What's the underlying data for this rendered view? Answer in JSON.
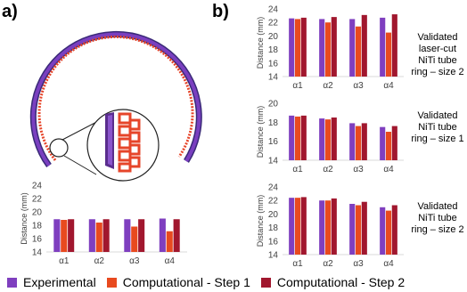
{
  "panels": {
    "a": "a)",
    "b": "b)"
  },
  "colors": {
    "experimental": "#7f3fbf",
    "step1": "#e84a1f",
    "step2": "#a1172e",
    "axis": "#d9d9d9",
    "ring_outer": "#3a2a78",
    "ring_inner": "#e6452a"
  },
  "legend": [
    {
      "label": "Experimental",
      "color": "#7f3fbf"
    },
    {
      "label": "Computational - Step 1",
      "color": "#e84a1f"
    },
    {
      "label": "Computational - Step 2",
      "color": "#a1172e"
    }
  ],
  "chart_data": [
    {
      "type": "bar",
      "panel": "a",
      "categories": [
        "α1",
        "α2",
        "α3",
        "α4"
      ],
      "ylabel": "Distance (mm)",
      "ylim": [
        14,
        24
      ],
      "yticks": [
        14,
        16,
        18,
        20,
        22,
        24
      ],
      "grid": false,
      "series": [
        {
          "name": "Experimental",
          "values": [
            18.9,
            18.9,
            18.9,
            19.0
          ]
        },
        {
          "name": "Computational - Step 1",
          "values": [
            18.8,
            18.4,
            17.8,
            17.1
          ]
        },
        {
          "name": "Computational - Step 2",
          "values": [
            18.9,
            18.9,
            18.9,
            18.9
          ]
        }
      ],
      "caption": []
    },
    {
      "type": "bar",
      "panel": "b-top",
      "categories": [
        "α1",
        "α2",
        "α3",
        "α4"
      ],
      "ylabel": "Distance (mm)",
      "ylim": [
        14,
        24
      ],
      "yticks": [
        14,
        16,
        18,
        20,
        22,
        24
      ],
      "grid": false,
      "series": [
        {
          "name": "Experimental",
          "values": [
            22.6,
            22.5,
            22.5,
            22.7
          ]
        },
        {
          "name": "Computational - Step 1",
          "values": [
            22.5,
            22.0,
            21.4,
            20.5
          ]
        },
        {
          "name": "Computational - Step 2",
          "values": [
            22.7,
            22.8,
            23.1,
            23.2
          ]
        }
      ],
      "caption": [
        "Validated",
        "laser-cut",
        "NiTi tube",
        "ring – size 2"
      ]
    },
    {
      "type": "bar",
      "panel": "b-middle",
      "categories": [
        "α1",
        "α2",
        "α3",
        "α4"
      ],
      "ylabel": "Distance (mm)",
      "ylim": [
        14,
        20
      ],
      "yticks": [
        14,
        16,
        18,
        20
      ],
      "grid": false,
      "series": [
        {
          "name": "Experimental",
          "values": [
            18.7,
            18.4,
            17.9,
            17.5
          ]
        },
        {
          "name": "Computational - Step 1",
          "values": [
            18.6,
            18.3,
            17.6,
            17.0
          ]
        },
        {
          "name": "Computational - Step 2",
          "values": [
            18.7,
            18.5,
            17.9,
            17.6
          ]
        }
      ],
      "caption": [
        "Validated",
        "NiTi tube",
        "ring – size 1"
      ]
    },
    {
      "type": "bar",
      "panel": "b-bottom",
      "categories": [
        "α1",
        "α2",
        "α3",
        "α4"
      ],
      "ylabel": "Distance (mm)",
      "ylim": [
        14,
        24
      ],
      "yticks": [
        14,
        16,
        18,
        20,
        22,
        24
      ],
      "grid": false,
      "series": [
        {
          "name": "Experimental",
          "values": [
            22.4,
            22.0,
            21.5,
            21.0
          ]
        },
        {
          "name": "Computational - Step 1",
          "values": [
            22.4,
            22.0,
            21.3,
            20.5
          ]
        },
        {
          "name": "Computational - Step 2",
          "values": [
            22.5,
            22.3,
            21.8,
            21.3
          ]
        }
      ],
      "caption": [
        "Validated",
        "NiTi tube",
        "ring – size 2"
      ]
    }
  ]
}
